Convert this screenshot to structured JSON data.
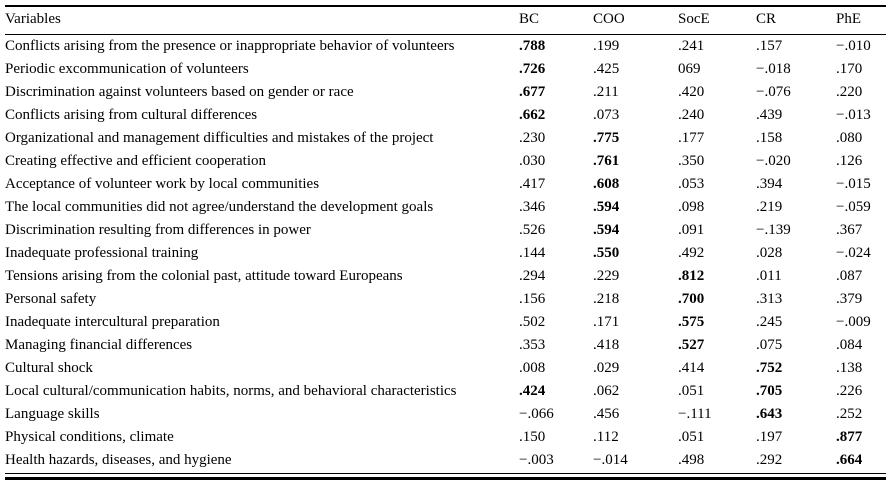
{
  "table": {
    "columns": [
      "Variables",
      "BC",
      "COO",
      "SocE",
      "CR",
      "PhE"
    ],
    "rows": [
      {
        "variable": "Conflicts arising from the presence or inappropriate behavior of volunteers",
        "values": [
          ".788",
          ".199",
          ".241",
          ".157",
          "−.010"
        ],
        "bold": [
          0
        ]
      },
      {
        "variable": "Periodic excommunication of volunteers",
        "values": [
          ".726",
          ".425",
          "069",
          "−.018",
          ".170"
        ],
        "bold": [
          0
        ]
      },
      {
        "variable": "Discrimination against volunteers based on gender or race",
        "values": [
          ".677",
          ".211",
          ".420",
          "−.076",
          ".220"
        ],
        "bold": [
          0
        ]
      },
      {
        "variable": "Conflicts arising from cultural differences",
        "values": [
          ".662",
          ".073",
          ".240",
          ".439",
          "−.013"
        ],
        "bold": [
          0
        ]
      },
      {
        "variable": "Organizational and management difficulties and mistakes of the project",
        "values": [
          ".230",
          ".775",
          ".177",
          ".158",
          ".080"
        ],
        "bold": [
          1
        ]
      },
      {
        "variable": "Creating effective and efficient cooperation",
        "values": [
          ".030",
          ".761",
          ".350",
          "−.020",
          ".126"
        ],
        "bold": [
          1
        ]
      },
      {
        "variable": "Acceptance of volunteer work by local communities",
        "values": [
          ".417",
          ".608",
          ".053",
          ".394",
          "−.015"
        ],
        "bold": [
          1
        ]
      },
      {
        "variable": "The local communities did not agree/understand the development goals",
        "values": [
          ".346",
          ".594",
          ".098",
          ".219",
          "−.059"
        ],
        "bold": [
          1
        ]
      },
      {
        "variable": "Discrimination resulting from differences in power",
        "values": [
          ".526",
          ".594",
          ".091",
          "−.139",
          ".367"
        ],
        "bold": [
          1
        ]
      },
      {
        "variable": "Inadequate professional training",
        "values": [
          ".144",
          ".550",
          ".492",
          ".028",
          "−.024"
        ],
        "bold": [
          1
        ]
      },
      {
        "variable": "Tensions arising from the colonial past, attitude toward Europeans",
        "values": [
          ".294",
          ".229",
          ".812",
          ".011",
          ".087"
        ],
        "bold": [
          2
        ]
      },
      {
        "variable": "Personal safety",
        "values": [
          ".156",
          ".218",
          ".700",
          ".313",
          ".379"
        ],
        "bold": [
          2
        ]
      },
      {
        "variable": "Inadequate intercultural preparation",
        "values": [
          ".502",
          ".171",
          ".575",
          ".245",
          "−.009"
        ],
        "bold": [
          2
        ]
      },
      {
        "variable": "Managing financial differences",
        "values": [
          ".353",
          ".418",
          ".527",
          ".075",
          ".084"
        ],
        "bold": [
          2
        ]
      },
      {
        "variable": "Cultural shock",
        "values": [
          ".008",
          ".029",
          ".414",
          ".752",
          ".138"
        ],
        "bold": [
          3
        ]
      },
      {
        "variable": "Local cultural/communication habits, norms, and behavioral characteristics",
        "values": [
          ".424",
          ".062",
          ".051",
          ".705",
          ".226"
        ],
        "bold": [
          0,
          3
        ]
      },
      {
        "variable": "Language skills",
        "values": [
          "−.066",
          ".456",
          "−.111",
          ".643",
          ".252"
        ],
        "bold": [
          3
        ]
      },
      {
        "variable": "Physical conditions, climate",
        "values": [
          ".150",
          ".112",
          ".051",
          ".197",
          ".877"
        ],
        "bold": [
          4
        ]
      },
      {
        "variable": "Health hazards, diseases, and hygiene",
        "values": [
          "−.003",
          "−.014",
          ".498",
          ".292",
          ".664"
        ],
        "bold": [
          4
        ]
      }
    ]
  }
}
